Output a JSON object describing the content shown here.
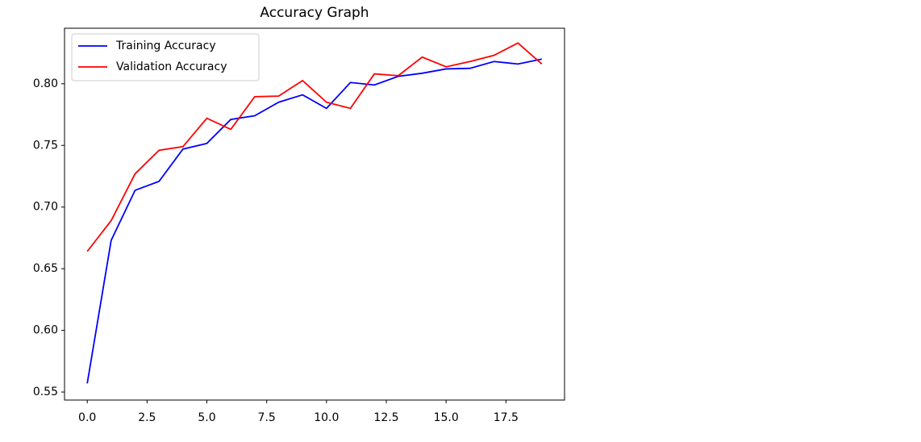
{
  "chart_data": {
    "type": "line",
    "title": "Accuracy Graph",
    "x": [
      0,
      1,
      2,
      3,
      4,
      5,
      6,
      7,
      8,
      9,
      10,
      11,
      12,
      13,
      14,
      15,
      16,
      17,
      18,
      19
    ],
    "series": [
      {
        "name": "Training Accuracy",
        "color": "#0000ff",
        "values": [
          0.557,
          0.673,
          0.7136,
          0.7208,
          0.747,
          0.7516,
          0.771,
          0.774,
          0.785,
          0.791,
          0.78,
          0.801,
          0.799,
          0.806,
          0.8085,
          0.812,
          0.8125,
          0.818,
          0.816,
          0.82
        ]
      },
      {
        "name": "Validation Accuracy",
        "color": "#ff0000",
        "values": [
          0.664,
          0.689,
          0.727,
          0.746,
          0.749,
          0.772,
          0.763,
          0.7895,
          0.79,
          0.8026,
          0.785,
          0.78,
          0.808,
          0.8065,
          0.8216,
          0.8137,
          0.818,
          0.823,
          0.833,
          0.816
        ]
      }
    ],
    "xlim": [
      -0.95,
      19.95
    ],
    "xticks": [
      {
        "value": 0,
        "label": "0.0"
      },
      2.5,
      {
        "value": 5,
        "label": "5.0"
      },
      7.5,
      {
        "value": 10,
        "label": "10.0"
      },
      12.5,
      {
        "value": 15,
        "label": "15.0"
      },
      17.5
    ],
    "ylim": [
      0.5435,
      0.845
    ],
    "yticks": [
      0.55,
      {
        "value": 0.6,
        "label": "0.60"
      },
      0.65,
      {
        "value": 0.7,
        "label": "0.70"
      },
      0.75,
      {
        "value": 0.8,
        "label": "0.80"
      }
    ],
    "grid": false,
    "legend": "upper left"
  }
}
